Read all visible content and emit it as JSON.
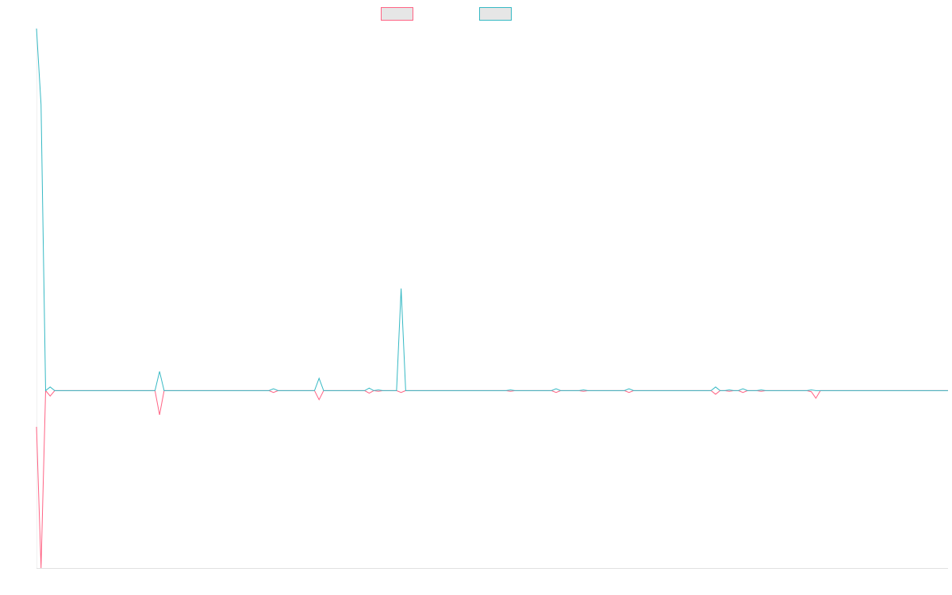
{
  "chart_data": {
    "type": "line",
    "categories": [
      null,
      null,
      null,
      null,
      null,
      null,
      null,
      null,
      null,
      null,
      null,
      null,
      null,
      null,
      null,
      null,
      null,
      null,
      null,
      null,
      null,
      null,
      null,
      null,
      null,
      null,
      null,
      null,
      null,
      null,
      null,
      null,
      null,
      null,
      null,
      null,
      null,
      null,
      null,
      null,
      null,
      null,
      null,
      null,
      null,
      null,
      null,
      null,
      null,
      null,
      null,
      null,
      null,
      null,
      null,
      null,
      null,
      null,
      null,
      null,
      null,
      null,
      null,
      null,
      null,
      null,
      null,
      null,
      null,
      null,
      null,
      null,
      null,
      null,
      null,
      null,
      null,
      null,
      null,
      null,
      null,
      null,
      null,
      null,
      null,
      null,
      null,
      null,
      null,
      null,
      null,
      null,
      null,
      null,
      null,
      null,
      null,
      null,
      null,
      null,
      null,
      null,
      null,
      null,
      null,
      null,
      null,
      null,
      null,
      null,
      null,
      null,
      null,
      null,
      null,
      null,
      null,
      null,
      null,
      null,
      null,
      null,
      null,
      null,
      null,
      null,
      null,
      null,
      null,
      null,
      null,
      null,
      null,
      null,
      null,
      null,
      null,
      null,
      null,
      null,
      null,
      null,
      null,
      null,
      null,
      null,
      null,
      null,
      null,
      null,
      null,
      null,
      null,
      null,
      null,
      null,
      null,
      null,
      null,
      null,
      null,
      null,
      null,
      null,
      null,
      null,
      null,
      null,
      null,
      null,
      null,
      null,
      null,
      null,
      null,
      null,
      null,
      null,
      null,
      null,
      null,
      null,
      null,
      null,
      null,
      null,
      null,
      null,
      null,
      null,
      null,
      null,
      null,
      null,
      null,
      null,
      null,
      null,
      null,
      null,
      null
    ],
    "series": [
      {
        "color": "#ff6384",
        "values": [
          -10,
          -49,
          0,
          -1.5,
          0,
          0,
          0,
          0,
          0,
          0,
          0,
          0,
          0,
          0,
          0,
          0,
          0,
          0,
          0,
          0,
          0,
          0,
          0,
          0,
          0,
          0,
          0,
          -6.7,
          0,
          0,
          0,
          0,
          0,
          0,
          0,
          0,
          0,
          0,
          0,
          0,
          0,
          0,
          0,
          0,
          0,
          0,
          0,
          0,
          0,
          0,
          0,
          0,
          -0.5,
          0,
          0,
          0,
          0,
          0,
          0,
          0,
          0,
          0,
          -2.5,
          0,
          0,
          0,
          0,
          0,
          0,
          0,
          0,
          0,
          0,
          -0.7,
          0,
          -0.2,
          0,
          0,
          0,
          0,
          -0.5,
          0,
          0,
          0,
          0,
          0,
          0,
          0,
          0,
          0,
          0,
          0,
          0,
          0,
          0,
          0,
          0,
          0,
          0,
          0,
          0,
          0,
          0,
          0,
          -0.2,
          0,
          0,
          0,
          0,
          0,
          0,
          0,
          0,
          0,
          -0.5,
          0,
          0,
          0,
          0,
          0,
          -0.2,
          0,
          0,
          0,
          0,
          0,
          0,
          0,
          0,
          0,
          -0.5,
          0,
          0,
          0,
          0,
          0,
          0,
          0,
          0,
          0,
          0,
          0,
          0,
          0,
          0,
          0,
          0,
          0,
          0,
          -1,
          0,
          0,
          -0.2,
          0,
          0,
          -0.5,
          0,
          0,
          0,
          -0.2,
          0,
          0,
          0,
          0,
          0,
          0,
          0,
          0,
          0,
          0,
          -0.3,
          -2.1,
          0,
          0,
          0,
          0,
          0,
          0,
          0,
          0,
          0,
          0,
          0,
          0,
          0,
          0,
          0,
          0,
          0,
          0,
          0,
          0,
          0,
          0,
          0,
          0,
          0,
          0,
          0,
          0,
          0
        ]
      },
      {
        "color": "#36b9c4",
        "values": [
          100,
          79,
          0,
          1,
          0,
          0,
          0,
          0,
          0,
          0,
          0,
          0,
          0,
          0,
          0,
          0,
          0,
          0,
          0,
          0,
          0,
          0,
          0,
          0,
          0,
          0,
          0,
          5.3,
          0,
          0,
          0,
          0,
          0,
          0,
          0,
          0,
          0,
          0,
          0,
          0,
          0,
          0,
          0,
          0,
          0,
          0,
          0,
          0,
          0,
          0,
          0,
          0,
          0.5,
          0,
          0,
          0,
          0,
          0,
          0,
          0,
          0,
          0,
          3.4,
          0,
          0,
          0,
          0,
          0,
          0,
          0,
          0,
          0,
          0,
          0.7,
          0,
          0.2,
          0,
          0,
          0,
          0,
          28.2,
          0,
          0,
          0,
          0,
          0,
          0,
          0,
          0,
          0,
          0,
          0,
          0,
          0,
          0,
          0,
          0,
          0,
          0,
          0,
          0,
          0,
          0,
          0,
          0.2,
          0,
          0,
          0,
          0,
          0,
          0,
          0,
          0,
          0,
          0.5,
          0,
          0,
          0,
          0,
          0,
          0.2,
          0,
          0,
          0,
          0,
          0,
          0,
          0,
          0,
          0,
          0.5,
          0,
          0,
          0,
          0,
          0,
          0,
          0,
          0,
          0,
          0,
          0,
          0,
          0,
          0,
          0,
          0,
          0,
          0,
          1,
          0,
          0,
          0.2,
          0,
          0,
          0.5,
          0,
          0,
          0,
          0.2,
          0,
          0,
          0,
          0,
          0,
          0,
          0,
          0,
          0,
          0,
          0.2,
          0,
          0,
          0,
          0,
          0,
          0,
          0,
          0,
          0,
          0,
          0,
          0,
          0,
          0,
          0,
          0,
          0,
          0,
          0,
          0,
          0,
          0,
          0,
          0,
          0,
          0,
          0,
          0,
          0,
          0
        ]
      }
    ],
    "ylim": [
      -49,
      100
    ]
  }
}
